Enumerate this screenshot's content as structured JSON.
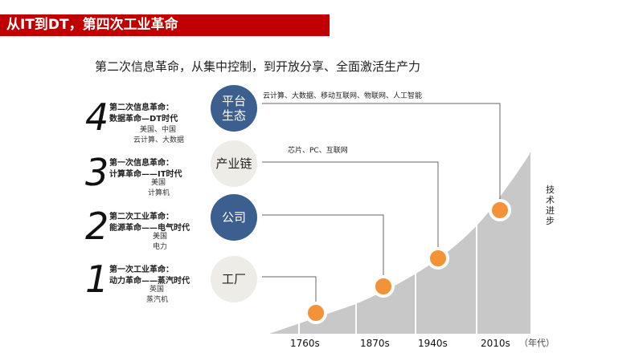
{
  "title": "从IT到DT，第四次工业革命",
  "subtitle": "第二次信息革命，从集中控制，到开放分享、全面激活生产力",
  "eras": [
    {
      "number": "4",
      "line1": "第二次信息革命：",
      "line2": "数据革命—DT时代",
      "line3": "美国、中国",
      "line4": "云计算、大数据"
    },
    {
      "number": "3",
      "line1": "第一次信息革命：",
      "line2": "计算革命——IT时代",
      "line3": "美国",
      "line4": "计算机"
    },
    {
      "number": "2",
      "line1": "第二次工业革命：",
      "line2": "能源革命——电气时代",
      "line3": "美国",
      "line4": "电力"
    },
    {
      "number": "1",
      "line1": "第一次工业革命：",
      "line2": "动力革命——蒸汽时代",
      "line3": "英国",
      "line4": "蒸汽机"
    }
  ],
  "nodes": [
    {
      "line1": "平台",
      "line2": "生态",
      "style": "dark"
    },
    {
      "line1": "产业链",
      "line2": "",
      "style": "light"
    },
    {
      "line1": "公司",
      "line2": "",
      "style": "dark"
    },
    {
      "line1": "工厂",
      "line2": "",
      "style": "light"
    }
  ],
  "annotations": {
    "platform": "云计算、大数据、移动互联网、物联网、人工智能",
    "chain": "芯片、PC、互联网"
  },
  "years": [
    "1760s",
    "1870s",
    "1940s",
    "2010s"
  ],
  "unit": "（年代）",
  "vertical_label": "技术进步",
  "colors": {
    "title_bg": "#c00000",
    "node_dark": "#3d5f8f",
    "node_light": "#eeece6",
    "dot": "#f39236",
    "area": "#c8c8c8"
  }
}
